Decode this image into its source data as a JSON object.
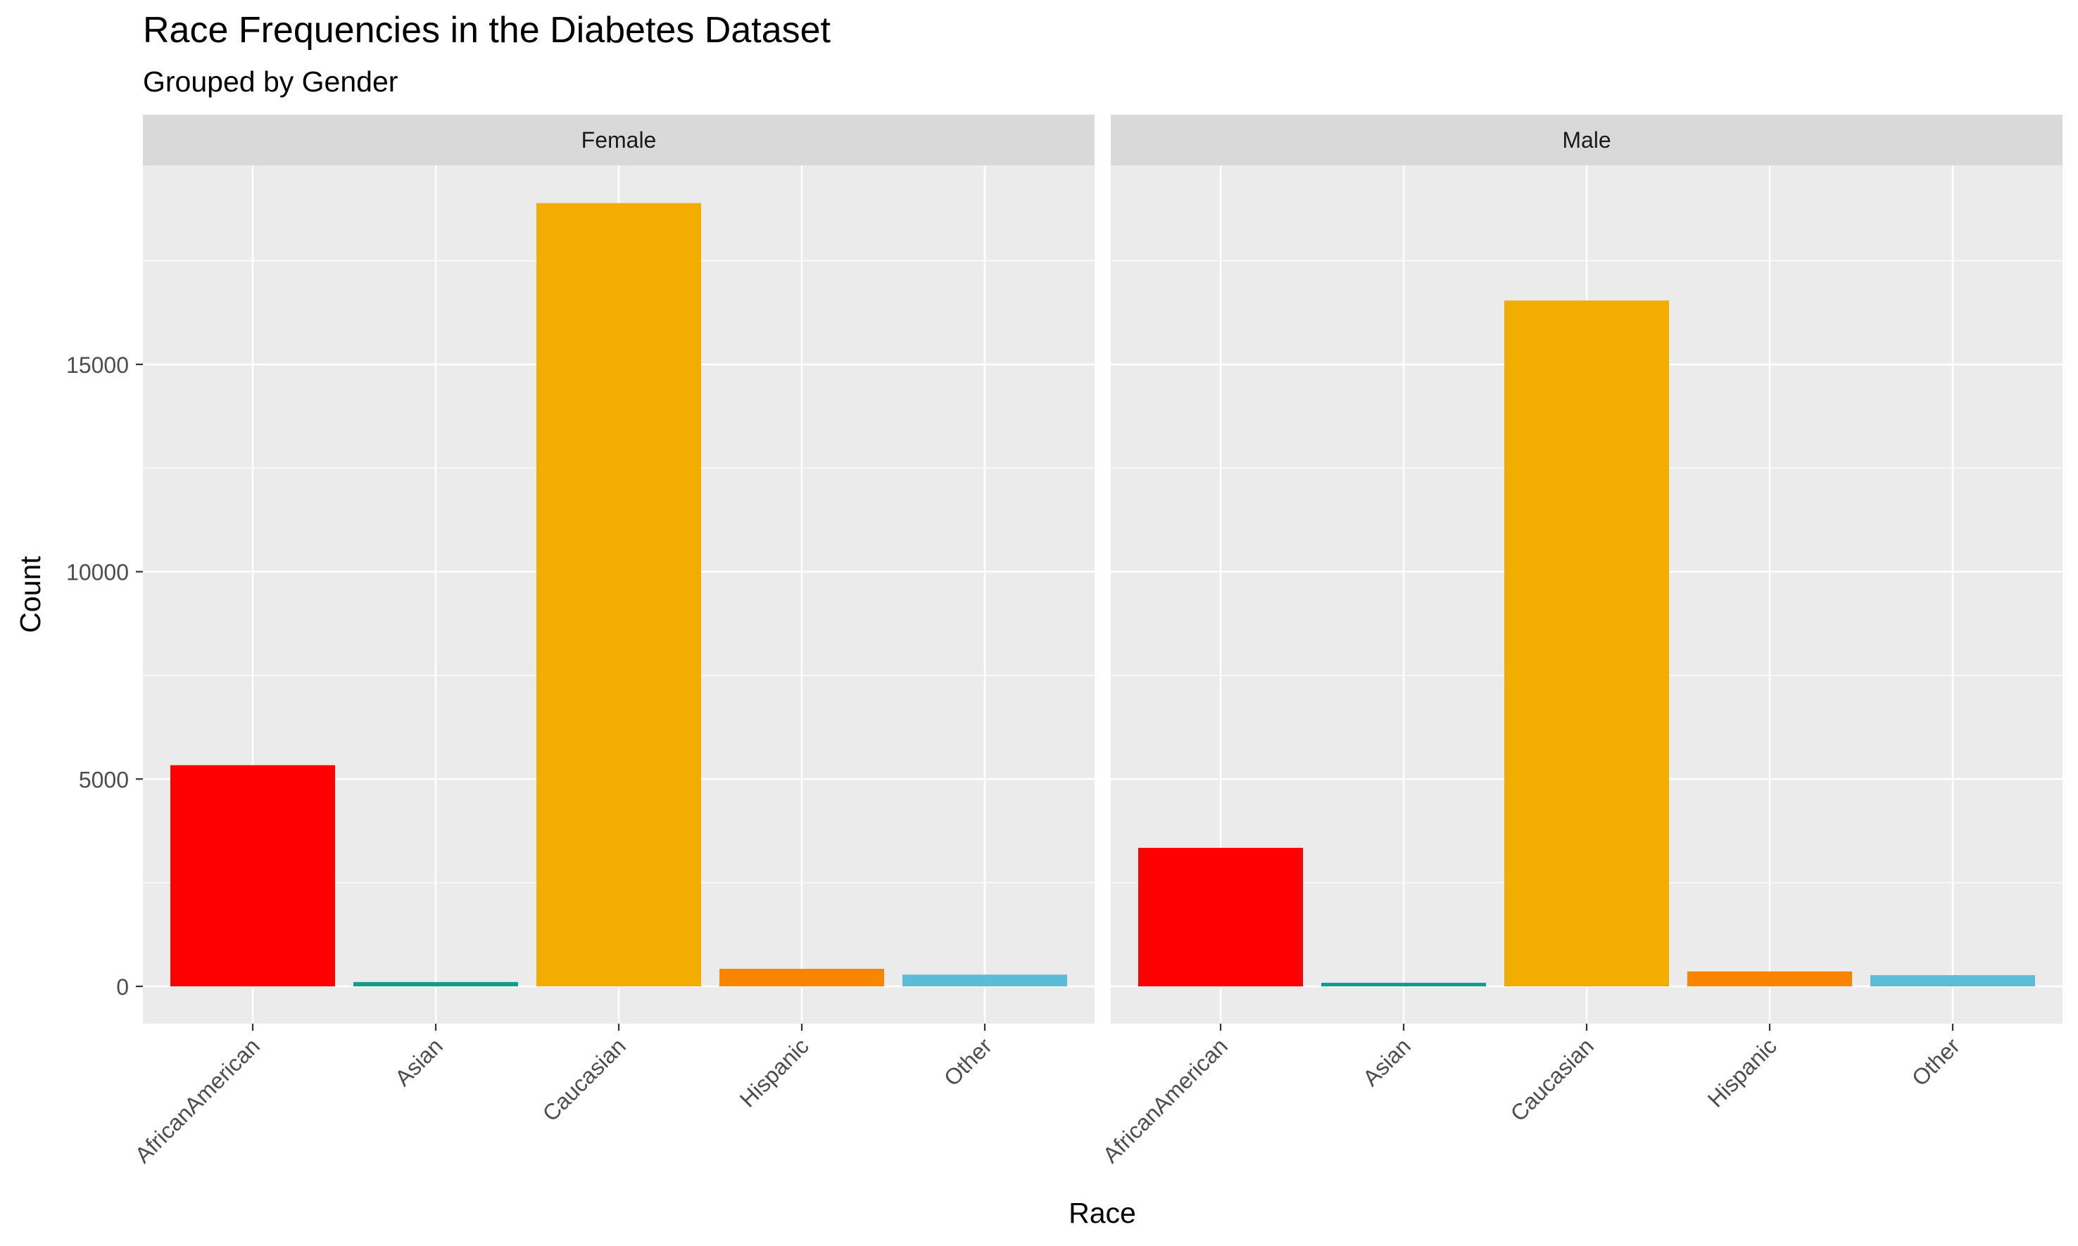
{
  "chart_data": {
    "type": "bar",
    "title": "Race Frequencies in the Diabetes Dataset",
    "subtitle": "Grouped by Gender",
    "xlabel": "Race",
    "ylabel": "Count",
    "categories": [
      "AfricanAmerican",
      "Asian",
      "Caucasian",
      "Hispanic",
      "Other"
    ],
    "colors": [
      "#FF0000",
      "#139B8C",
      "#F2AD00",
      "#F98400",
      "#5BBCD6"
    ],
    "ylim": [
      -900,
      19800
    ],
    "yticks": [
      0,
      5000,
      10000,
      15000
    ],
    "ytick_labels": [
      "0",
      "5000",
      "10000",
      "15000"
    ],
    "grid": true,
    "legend": "none",
    "facets": [
      {
        "name": "Female",
        "values": [
          5334,
          104,
          18890,
          423,
          283
        ]
      },
      {
        "name": "Male",
        "values": [
          3340,
          87,
          16540,
          360,
          270
        ]
      }
    ]
  }
}
